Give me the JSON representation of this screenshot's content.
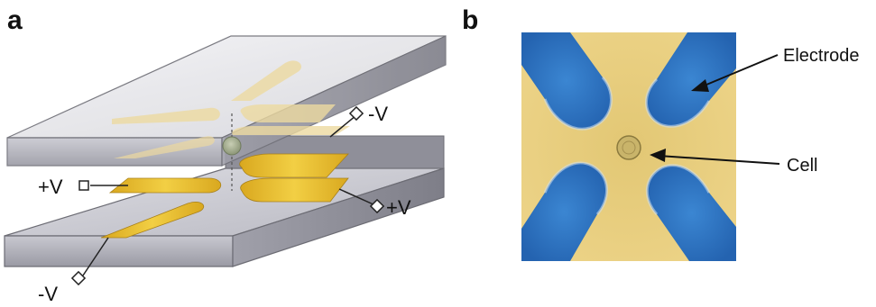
{
  "panel_a": {
    "letter": "a",
    "terminals": [
      {
        "id": "top-right",
        "label": "-V"
      },
      {
        "id": "left",
        "label": "+V"
      },
      {
        "id": "right",
        "label": "+V"
      },
      {
        "id": "bottom-left",
        "label": "-V"
      }
    ]
  },
  "panel_b": {
    "letter": "b",
    "callouts": {
      "electrode": "Electrode",
      "cell": "Cell"
    }
  },
  "colors": {
    "gold_electrode": "#e9c02f",
    "gold_faded": "#e8d8a0",
    "plate_top": "#e9e9ec",
    "plate_side": "#9d9da6",
    "micro_background": "#e8cf7e",
    "micro_electrode_blue": "#2f78c8",
    "cell": "#a9b49a"
  }
}
